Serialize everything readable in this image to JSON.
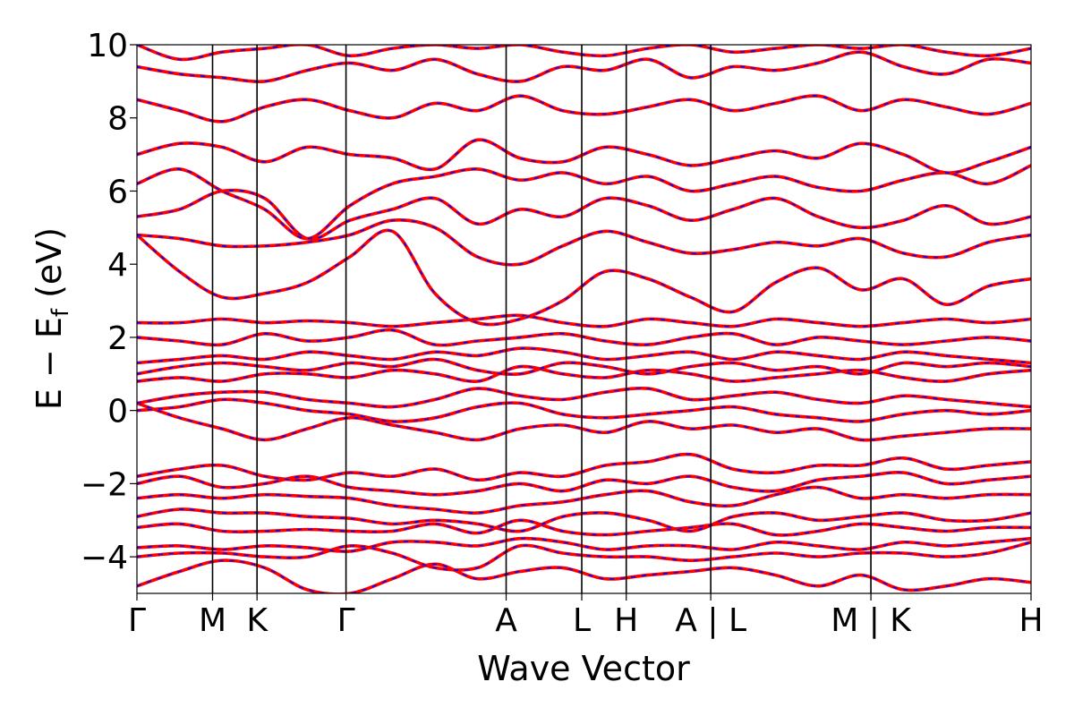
{
  "chart_data": {
    "type": "line",
    "title": "",
    "xlabel": "Wave Vector",
    "ylabel": "E − E_f (eV)",
    "ylabel_main": "E  −  E",
    "ylabel_sub": "f",
    "ylabel_tail": " (eV)",
    "ylim": [
      -5,
      10
    ],
    "yticks": [
      -4,
      -2,
      0,
      2,
      4,
      6,
      8,
      10
    ],
    "ytick_labels": [
      "−4",
      "−2",
      "0",
      "2",
      "4",
      "6",
      "8",
      "10"
    ],
    "xlim": [
      0,
      10.05
    ],
    "path_labels": [
      "Γ",
      "M",
      "K",
      "Γ",
      "A",
      "L",
      "H",
      "A | L",
      "M | K",
      "H"
    ],
    "path_positions": [
      0,
      0.85,
      1.35,
      2.35,
      4.15,
      5.0,
      5.5,
      6.45,
      8.25,
      10.05
    ],
    "grid": false,
    "line_colors": {
      "main": "#ff0000",
      "overlay": "#0000ff"
    },
    "series_style": "red solid band lines overlaid with blue dashed lines",
    "series": [
      {
        "y": [
          -4.8,
          -4.4,
          -4.1,
          -4.3,
          -4.9,
          -5.0,
          -4.6,
          -4.2,
          -4.6,
          -4.4,
          -4.3,
          -4.6,
          -4.5,
          -4.4,
          -4.3,
          -4.5,
          -4.8,
          -4.5,
          -4.9,
          -4.8,
          -4.6,
          -4.7
        ]
      },
      {
        "y": [
          -4.0,
          -3.9,
          -3.9,
          -4.0,
          -4.0,
          -3.7,
          -3.9,
          -4.3,
          -4.3,
          -3.7,
          -3.9,
          -4.0,
          -4.0,
          -4.1,
          -4.0,
          -3.9,
          -4.0,
          -3.9,
          -3.9,
          -4.0,
          -3.9,
          -3.6
        ]
      },
      {
        "y": [
          -3.75,
          -3.7,
          -3.8,
          -3.7,
          -3.75,
          -3.85,
          -3.6,
          -3.6,
          -3.7,
          -3.5,
          -3.6,
          -3.8,
          -3.7,
          -3.7,
          -3.8,
          -3.6,
          -3.7,
          -3.8,
          -3.6,
          -3.7,
          -3.6,
          -3.5
        ]
      },
      {
        "y": [
          -3.2,
          -3.1,
          -3.3,
          -3.3,
          -3.25,
          -3.3,
          -3.3,
          -3.1,
          -3.35,
          -3.0,
          -3.3,
          -3.4,
          -3.3,
          -3.2,
          -3.1,
          -3.4,
          -3.3,
          -3.1,
          -3.2,
          -3.3,
          -3.2,
          -3.2
        ]
      },
      {
        "y": [
          -2.9,
          -2.7,
          -2.8,
          -2.8,
          -2.9,
          -2.95,
          -3.1,
          -3.0,
          -3.1,
          -3.3,
          -2.9,
          -2.8,
          -3.0,
          -3.3,
          -2.9,
          -2.8,
          -3.0,
          -2.9,
          -2.8,
          -3.0,
          -3.0,
          -2.8
        ]
      },
      {
        "y": [
          -2.4,
          -2.3,
          -2.4,
          -2.3,
          -2.35,
          -2.4,
          -2.6,
          -2.7,
          -2.8,
          -2.6,
          -2.5,
          -2.3,
          -2.2,
          -2.5,
          -2.6,
          -2.3,
          -2.1,
          -2.4,
          -2.3,
          -2.4,
          -2.3,
          -2.3
        ]
      },
      {
        "y": [
          -2.0,
          -1.8,
          -2.1,
          -2.0,
          -1.8,
          -2.1,
          -2.2,
          -2.3,
          -2.2,
          -2.0,
          -2.2,
          -1.9,
          -2.0,
          -1.8,
          -2.1,
          -2.2,
          -1.9,
          -1.8,
          -1.7,
          -2.0,
          -1.9,
          -1.8
        ]
      },
      {
        "y": [
          -1.8,
          -1.6,
          -1.5,
          -1.8,
          -1.9,
          -1.7,
          -1.8,
          -1.6,
          -1.9,
          -1.7,
          -1.8,
          -1.5,
          -1.4,
          -1.2,
          -1.6,
          -1.7,
          -1.5,
          -1.5,
          -1.3,
          -1.6,
          -1.5,
          -1.4
        ]
      },
      {
        "y": [
          0.2,
          -0.2,
          -0.5,
          -0.8,
          -0.5,
          -0.2,
          -0.4,
          -0.6,
          -0.8,
          -0.5,
          -0.4,
          -0.6,
          -0.3,
          -0.5,
          -0.4,
          -0.6,
          -0.5,
          -0.8,
          -0.7,
          -0.6,
          -0.5,
          -0.5
        ]
      },
      {
        "y": [
          0.0,
          0.1,
          0.3,
          0.2,
          0.0,
          -0.1,
          -0.3,
          -0.2,
          0.1,
          0.2,
          -0.1,
          -0.2,
          -0.1,
          0.0,
          0.1,
          -0.1,
          -0.2,
          -0.3,
          -0.1,
          0.0,
          -0.1,
          0.0
        ]
      },
      {
        "y": [
          0.2,
          0.4,
          0.5,
          0.5,
          0.3,
          0.2,
          0.1,
          0.3,
          0.6,
          0.4,
          0.3,
          0.5,
          0.6,
          0.3,
          0.4,
          0.5,
          0.3,
          0.2,
          0.4,
          0.3,
          0.2,
          0.1
        ]
      },
      {
        "y": [
          0.8,
          0.9,
          0.8,
          1.0,
          1.0,
          0.9,
          1.1,
          1.0,
          0.8,
          1.2,
          1.0,
          0.9,
          1.1,
          1.0,
          0.8,
          0.9,
          1.0,
          1.1,
          0.9,
          0.8,
          1.0,
          1.1
        ]
      },
      {
        "y": [
          1.0,
          1.2,
          1.3,
          1.2,
          1.1,
          1.3,
          1.2,
          1.4,
          1.1,
          1.0,
          1.3,
          1.2,
          1.0,
          1.2,
          1.3,
          1.1,
          1.2,
          1.0,
          1.3,
          1.2,
          1.3,
          1.2
        ]
      },
      {
        "y": [
          1.3,
          1.4,
          1.5,
          1.4,
          1.6,
          1.5,
          1.4,
          1.6,
          1.5,
          1.7,
          1.6,
          1.4,
          1.5,
          1.6,
          1.4,
          1.6,
          1.5,
          1.4,
          1.6,
          1.5,
          1.4,
          1.3
        ]
      },
      {
        "y": [
          2.0,
          1.9,
          1.8,
          2.1,
          1.9,
          2.0,
          2.2,
          1.8,
          1.9,
          2.0,
          2.1,
          1.9,
          1.8,
          2.0,
          2.1,
          1.8,
          2.0,
          1.9,
          1.8,
          1.9,
          2.0,
          1.9
        ]
      },
      {
        "y": [
          2.4,
          2.4,
          2.5,
          2.4,
          2.45,
          2.4,
          2.3,
          2.4,
          2.5,
          2.6,
          2.4,
          2.3,
          2.5,
          2.4,
          2.3,
          2.5,
          2.4,
          2.3,
          2.4,
          2.5,
          2.4,
          2.5
        ]
      },
      {
        "y": [
          4.8,
          3.8,
          3.1,
          3.2,
          3.5,
          4.2,
          4.9,
          3.2,
          2.4,
          2.5,
          3.0,
          3.8,
          3.6,
          3.1,
          2.7,
          3.5,
          3.9,
          3.3,
          3.6,
          2.9,
          3.4,
          3.6
        ]
      },
      {
        "y": [
          4.8,
          4.7,
          4.5,
          4.5,
          4.6,
          4.8,
          5.2,
          5.0,
          4.2,
          4.0,
          4.5,
          4.9,
          4.6,
          4.3,
          4.4,
          4.6,
          4.5,
          4.7,
          4.3,
          4.2,
          4.6,
          4.8
        ]
      },
      {
        "y": [
          5.3,
          5.5,
          6.0,
          5.8,
          4.7,
          5.2,
          5.5,
          5.8,
          5.1,
          5.5,
          5.3,
          5.8,
          5.6,
          5.2,
          5.5,
          5.8,
          5.3,
          5.0,
          5.2,
          5.6,
          5.1,
          5.3
        ]
      },
      {
        "y": [
          6.2,
          6.6,
          6.0,
          5.5,
          4.7,
          5.6,
          6.2,
          6.4,
          6.6,
          6.3,
          6.5,
          6.2,
          6.4,
          6.0,
          6.2,
          6.4,
          6.1,
          6.0,
          6.3,
          6.5,
          6.2,
          6.7
        ]
      },
      {
        "y": [
          7.0,
          7.3,
          7.2,
          6.8,
          7.2,
          7.0,
          6.9,
          6.6,
          7.4,
          6.9,
          6.8,
          7.2,
          7.0,
          6.7,
          6.9,
          7.1,
          6.9,
          7.3,
          7.0,
          6.5,
          6.8,
          7.2
        ]
      },
      {
        "y": [
          8.5,
          8.2,
          7.9,
          8.3,
          8.5,
          8.2,
          8.0,
          8.4,
          8.2,
          8.6,
          8.2,
          8.1,
          8.3,
          8.5,
          8.2,
          8.4,
          8.6,
          8.2,
          8.5,
          8.3,
          8.1,
          8.4
        ]
      },
      {
        "y": [
          9.4,
          9.2,
          9.1,
          9.0,
          9.3,
          9.5,
          9.3,
          9.6,
          9.2,
          9.0,
          9.4,
          9.3,
          9.6,
          9.1,
          9.4,
          9.3,
          9.5,
          9.8,
          9.4,
          9.2,
          9.6,
          9.5
        ]
      },
      {
        "y": [
          10.0,
          9.6,
          9.8,
          9.9,
          10.0,
          9.7,
          9.9,
          10.0,
          9.9,
          10.0,
          9.8,
          9.7,
          9.9,
          10.0,
          9.8,
          9.9,
          10.0,
          9.9,
          10.0,
          9.8,
          9.7,
          9.9
        ]
      }
    ]
  }
}
